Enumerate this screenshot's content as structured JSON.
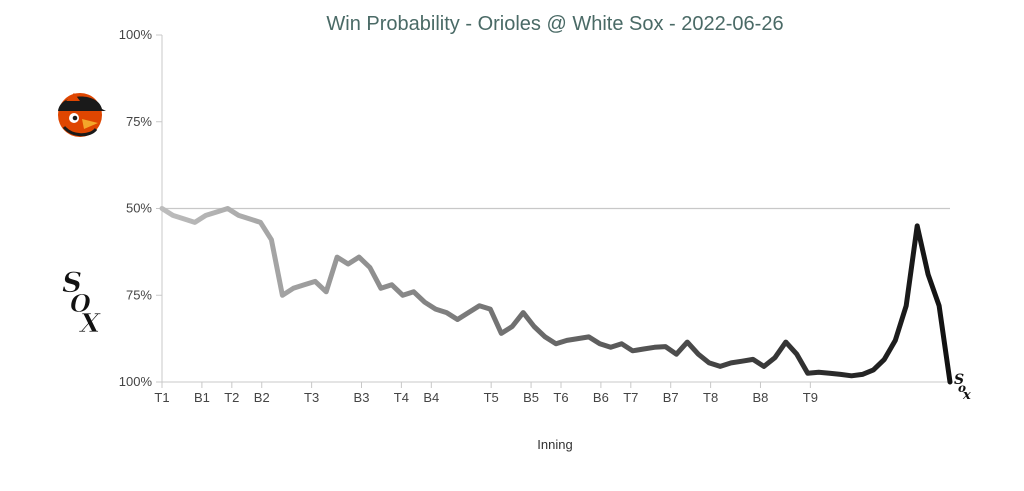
{
  "chart_data": {
    "type": "line",
    "title": "Win Probability - Orioles @ White Sox - 2022-06-26",
    "xlabel": "Inning",
    "ylabel": "",
    "y_axis": {
      "ticks": [
        "100%",
        "75%",
        "50%",
        "75%",
        "100%"
      ],
      "top_team": "Orioles",
      "bottom_team": "White Sox",
      "note": "signed win probability: +50 = Orioles 100%, 0 = 50%, -50 = White Sox 100%"
    },
    "ylim": [
      -50,
      50
    ],
    "xlim": [
      0,
      79
    ],
    "grid": false,
    "reference_line": 0,
    "x_ticks": [
      {
        "label": "T1",
        "x": 0
      },
      {
        "label": "B1",
        "x": 4
      },
      {
        "label": "T2",
        "x": 7
      },
      {
        "label": "B2",
        "x": 10
      },
      {
        "label": "T3",
        "x": 15
      },
      {
        "label": "B3",
        "x": 20
      },
      {
        "label": "T4",
        "x": 24
      },
      {
        "label": "B4",
        "x": 27
      },
      {
        "label": "T5",
        "x": 33
      },
      {
        "label": "B5",
        "x": 37
      },
      {
        "label": "T6",
        "x": 40
      },
      {
        "label": "B6",
        "x": 44
      },
      {
        "label": "T7",
        "x": 47
      },
      {
        "label": "B7",
        "x": 51
      },
      {
        "label": "T8",
        "x": 55
      },
      {
        "label": "B8",
        "x": 60
      },
      {
        "label": "T9",
        "x": 65
      }
    ],
    "series": [
      {
        "values": [
          0,
          -2,
          -3,
          -4,
          -2,
          -1,
          0,
          -2,
          -3,
          -4,
          -9,
          -25,
          -23,
          -22,
          -21,
          -24,
          -14,
          -16,
          -14,
          -17,
          -23,
          -22,
          -25,
          -24,
          -27,
          -29,
          -30,
          -32,
          -30,
          -28,
          -29,
          -36,
          -34,
          -30,
          -34,
          -37,
          -39,
          -38,
          -37.5,
          -37,
          -39,
          -40,
          -39,
          -41,
          -40.5,
          -40,
          -39.8,
          -42,
          -38.5,
          -42,
          -44.5,
          -45.5,
          -44.5,
          -44,
          -43.5,
          -45.5,
          -43,
          -38.5,
          -42,
          -47.5,
          -47.2,
          -47.5,
          -47.8,
          -48.2,
          -47.8,
          -46.5,
          -43.5,
          -38,
          -28,
          -5,
          -19,
          -28,
          -50
        ]
      }
    ],
    "line_colors": {
      "start": "#bdbdbd",
      "end": "#111111"
    },
    "axis_color": "#c8c8c8",
    "title_color": "#4a6a66"
  },
  "logos": {
    "top": {
      "name": "orioles-logo",
      "colors": {
        "body": "#df4601",
        "dark": "#1a1a1a",
        "beak": "#f4a62a"
      }
    },
    "bottom": {
      "name": "white-sox-logo",
      "text": "SOX"
    },
    "end_marker": {
      "name": "white-sox-end-icon",
      "text": "SOX"
    }
  }
}
